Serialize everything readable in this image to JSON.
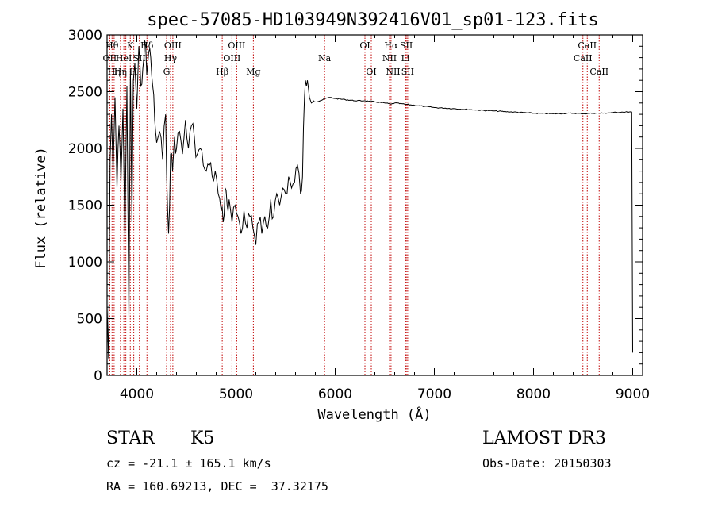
{
  "chart_data": {
    "type": "line",
    "title": "spec-57085-HD103949N392416V01_sp01-123.fits",
    "xlabel": "Wavelength (Å)",
    "ylabel": "Flux (relative)",
    "xlim": [
      3700,
      9100
    ],
    "ylim": [
      0,
      3000
    ],
    "xticks": [
      4000,
      5000,
      6000,
      7000,
      8000,
      9000
    ],
    "yticks": [
      0,
      500,
      1000,
      1500,
      2000,
      2500,
      3000
    ],
    "series": [
      {
        "name": "spectrum",
        "x": [
          3700,
          3715,
          3730,
          3745,
          3760,
          3780,
          3800,
          3820,
          3840,
          3860,
          3880,
          3900,
          3920,
          3935,
          3950,
          3965,
          3980,
          4000,
          4020,
          4040,
          4060,
          4080,
          4100,
          4120,
          4140,
          4160,
          4180,
          4200,
          4230,
          4260,
          4290,
          4310,
          4320,
          4340,
          4360,
          4380,
          4400,
          4430,
          4460,
          4490,
          4520,
          4550,
          4580,
          4610,
          4640,
          4670,
          4700,
          4730,
          4760,
          4790,
          4820,
          4850,
          4870,
          4890,
          4910,
          4930,
          4960,
          4990,
          5020,
          5050,
          5080,
          5110,
          5140,
          5170,
          5200,
          5230,
          5260,
          5290,
          5320,
          5350,
          5380,
          5410,
          5440,
          5470,
          5500,
          5530,
          5560,
          5590,
          5620,
          5650,
          5670,
          5690,
          5700,
          5710,
          5720,
          5740,
          5760,
          5780,
          5800,
          5850,
          5900,
          5950,
          6000,
          6100,
          6200,
          6300,
          6400,
          6500,
          6563,
          6600,
          6700,
          6800,
          6900,
          7000,
          7200,
          7400,
          7600,
          7800,
          8000,
          8200,
          8400,
          8500,
          8600,
          8700,
          8800,
          8900,
          8990,
          9000
        ],
        "y": [
          600,
          150,
          1900,
          2300,
          1800,
          2450,
          1650,
          2200,
          1700,
          2350,
          1200,
          2550,
          500,
          2700,
          1350,
          2600,
          2750,
          2350,
          2900,
          2550,
          2700,
          2950,
          2650,
          2850,
          2800,
          2550,
          2250,
          2050,
          2150,
          1900,
          2300,
          1450,
          1250,
          1950,
          1800,
          2100,
          2000,
          2150,
          1950,
          2250,
          2000,
          2200,
          2100,
          1950,
          2000,
          1850,
          1800,
          1850,
          1750,
          1800,
          1600,
          1450,
          1350,
          1650,
          1500,
          1550,
          1350,
          1500,
          1400,
          1250,
          1450,
          1300,
          1400,
          1300,
          1150,
          1350,
          1250,
          1400,
          1300,
          1550,
          1400,
          1600,
          1500,
          1650,
          1600,
          1750,
          1650,
          1700,
          1850,
          1600,
          1750,
          2450,
          2600,
          2550,
          2600,
          2450,
          2400,
          2420,
          2410,
          2420,
          2440,
          2450,
          2440,
          2430,
          2420,
          2420,
          2410,
          2400,
          2390,
          2400,
          2390,
          2380,
          2370,
          2360,
          2350,
          2340,
          2330,
          2320,
          2310,
          2305,
          2310,
          2305,
          2310,
          2310,
          2315,
          2320,
          2320,
          200
        ]
      }
    ],
    "lines": [
      {
        "x": 3727,
        "label": "OII",
        "row": 2
      },
      {
        "x": 3750,
        "label": "Hθ",
        "row": 1
      },
      {
        "x": 3771,
        "label": "Hη",
        "row": 3
      },
      {
        "x": 3835,
        "label": "Hη",
        "row": 3
      },
      {
        "x": 3869,
        "label": "HeI",
        "row": 2
      },
      {
        "x": 3889,
        "label": "",
        "row": 0
      },
      {
        "x": 3934,
        "label": "K",
        "row": 1
      },
      {
        "x": 3969,
        "label": "H",
        "row": 3
      },
      {
        "x": 4026,
        "label": "SII",
        "row": 2
      },
      {
        "x": 4102,
        "label": "Hδ",
        "row": 1
      },
      {
        "x": 4300,
        "label": "G",
        "row": 3
      },
      {
        "x": 4340,
        "label": "Hγ",
        "row": 2
      },
      {
        "x": 4363,
        "label": "OIII",
        "row": 1
      },
      {
        "x": 4861,
        "label": "Hβ",
        "row": 3
      },
      {
        "x": 4959,
        "label": "OIII",
        "row": 2
      },
      {
        "x": 5007,
        "label": "OIII",
        "row": 1
      },
      {
        "x": 5175,
        "label": "Mg",
        "row": 3
      },
      {
        "x": 5893,
        "label": "Na",
        "row": 2
      },
      {
        "x": 6300,
        "label": "OI",
        "row": 1
      },
      {
        "x": 6364,
        "label": "OI",
        "row": 3
      },
      {
        "x": 6548,
        "label": "NII",
        "row": 2
      },
      {
        "x": 6563,
        "label": "Hα",
        "row": 1
      },
      {
        "x": 6584,
        "label": "NII",
        "row": 3
      },
      {
        "x": 6708,
        "label": "Li",
        "row": 2
      },
      {
        "x": 6717,
        "label": "SII",
        "row": 1
      },
      {
        "x": 6731,
        "label": "SII",
        "row": 3
      },
      {
        "x": 8498,
        "label": "CaII",
        "row": 2
      },
      {
        "x": 8542,
        "label": "CaII",
        "row": 1
      },
      {
        "x": 8662,
        "label": "CaII",
        "row": 3
      }
    ]
  },
  "info": {
    "class": "STAR",
    "subclass": "K5",
    "survey": "LAMOST DR3",
    "cz": "cz = -21.1 ± 165.1 km/s",
    "obs_date": "Obs-Date: 20150303",
    "coords": "RA = 160.69213, DEC =  37.32175"
  },
  "colors": {
    "spectrum": "#000000",
    "line_marker": "#c00000",
    "axis": "#000000",
    "background": "#ffffff"
  }
}
